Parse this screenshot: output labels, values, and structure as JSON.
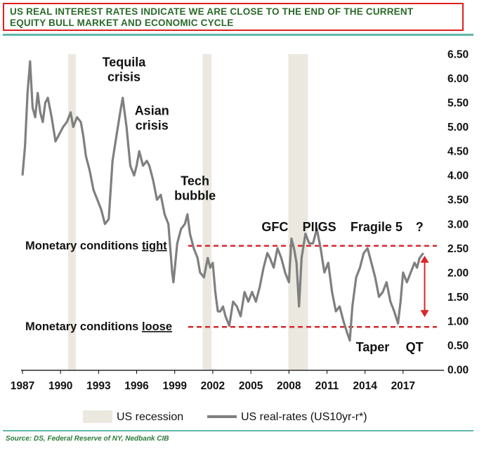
{
  "header": {
    "title_line1": "US REAL INTEREST RATES INDICATE WE ARE CLOSE TO THE END OF THE CURRENT",
    "title_line2": "EQUITY BULL MARKET AND ECONOMIC CYCLE"
  },
  "source": "Source: DS, Federal Reserve of NY, Nedbank CIB",
  "colors": {
    "line": "#7f7f7f",
    "recession": "#ebe8e0",
    "threshold": "#d9262b",
    "title_border": "#e02020",
    "title_text": "#2a6a2a",
    "accent_rule": "#5fb8a8"
  },
  "chart_data": {
    "type": "line",
    "xlim": [
      1987,
      2020
    ],
    "ylim": [
      0,
      6.5
    ],
    "x_ticks": [
      "1987",
      "1990",
      "1993",
      "1996",
      "1999",
      "2002",
      "2005",
      "2008",
      "2011",
      "2014",
      "2017"
    ],
    "x_tick_values": [
      1987,
      1990,
      1993,
      1996,
      1999,
      2002,
      2005,
      2008,
      2011,
      2014,
      2017
    ],
    "y_ticks": [
      "0.00",
      "0.50",
      "1.00",
      "1.50",
      "2.00",
      "2.50",
      "3.00",
      "3.50",
      "4.00",
      "4.50",
      "5.00",
      "5.50",
      "6.00",
      "6.50"
    ],
    "y_axis_position": "right",
    "legend": {
      "position": "bottom",
      "items": [
        {
          "label": "US recession",
          "kind": "band"
        },
        {
          "label": "US real-rates (US10yr-r*)",
          "kind": "line"
        }
      ]
    },
    "recessions": [
      [
        1990.6,
        1991.2
      ],
      [
        2001.2,
        2001.9
      ],
      [
        2007.95,
        2009.5
      ]
    ],
    "thresholds": [
      {
        "value": 2.55,
        "label_prefix": "Monetary conditions ",
        "label_word": "tight"
      },
      {
        "value": 0.88,
        "label_prefix": "Monetary conditions ",
        "label_word": "loose"
      }
    ],
    "range_arrow": {
      "x": 2018.7,
      "from": 0.88,
      "to": 2.55
    },
    "annotations": [
      {
        "lines": [
          "Tequila",
          "crisis"
        ],
        "x": 1995,
        "y": 6.25
      },
      {
        "lines": [
          "Asian",
          "crisis"
        ],
        "x": 1997.2,
        "y": 5.25
      },
      {
        "lines": [
          "Tech",
          "bubble"
        ],
        "x": 2000.6,
        "y": 3.8
      },
      {
        "lines": [
          "GFC"
        ],
        "x": 2006.9,
        "y": 2.85
      },
      {
        "lines": [
          "PIIGS"
        ],
        "x": 2010.4,
        "y": 2.85
      },
      {
        "lines": [
          "Fragile 5"
        ],
        "x": 2014.9,
        "y": 2.85
      },
      {
        "lines": [
          "?"
        ],
        "x": 2018.3,
        "y": 2.85
      },
      {
        "lines": [
          "Taper"
        ],
        "x": 2014.6,
        "y": 0.38
      },
      {
        "lines": [
          "QT"
        ],
        "x": 2017.9,
        "y": 0.38
      }
    ],
    "series": [
      {
        "name": "US real-rates (US10yr-r*)",
        "x": [
          1987.0,
          1987.2,
          1987.4,
          1987.6,
          1987.8,
          1988.0,
          1988.2,
          1988.4,
          1988.6,
          1988.8,
          1989.0,
          1989.3,
          1989.6,
          1990.0,
          1990.2,
          1990.5,
          1990.8,
          1991.0,
          1991.3,
          1991.6,
          1991.8,
          1992.0,
          1992.3,
          1992.6,
          1992.9,
          1993.2,
          1993.5,
          1993.8,
          1994.1,
          1994.4,
          1994.7,
          1994.9,
          1995.2,
          1995.5,
          1995.8,
          1996.0,
          1996.2,
          1996.5,
          1996.8,
          1997.0,
          1997.3,
          1997.6,
          1997.9,
          1998.2,
          1998.5,
          1998.8,
          1998.9,
          1999.2,
          1999.5,
          1999.8,
          2000.0,
          2000.2,
          2000.5,
          2000.8,
          2001.0,
          2001.3,
          2001.6,
          2001.8,
          2002.0,
          2002.2,
          2002.4,
          2002.6,
          2002.8,
          2003.0,
          2003.3,
          2003.6,
          2003.9,
          2004.2,
          2004.5,
          2004.8,
          2005.1,
          2005.4,
          2005.7,
          2006.0,
          2006.3,
          2006.5,
          2006.8,
          2007.1,
          2007.4,
          2007.7,
          2008.0,
          2008.2,
          2008.4,
          2008.6,
          2008.8,
          2009.0,
          2009.3,
          2009.6,
          2009.9,
          2010.2,
          2010.5,
          2010.8,
          2011.1,
          2011.4,
          2011.7,
          2012.0,
          2012.3,
          2012.6,
          2012.8,
          2013.0,
          2013.3,
          2013.6,
          2013.9,
          2014.2,
          2014.5,
          2014.8,
          2015.1,
          2015.4,
          2015.7,
          2016.0,
          2016.3,
          2016.6,
          2016.8,
          2017.0,
          2017.3,
          2017.6,
          2017.9,
          2018.1,
          2018.3,
          2018.6
        ],
        "y": [
          4.0,
          4.6,
          5.7,
          6.35,
          5.4,
          5.2,
          5.7,
          5.3,
          5.1,
          5.5,
          5.6,
          5.2,
          4.7,
          4.9,
          5.0,
          5.1,
          5.3,
          5.0,
          5.2,
          5.1,
          4.8,
          4.4,
          4.1,
          3.7,
          3.5,
          3.3,
          3.0,
          3.1,
          4.3,
          4.8,
          5.3,
          5.6,
          5.0,
          4.2,
          4.0,
          4.2,
          4.5,
          4.2,
          4.3,
          4.2,
          3.9,
          3.5,
          3.6,
          3.2,
          3.0,
          2.0,
          1.8,
          2.6,
          2.9,
          3.0,
          3.2,
          2.8,
          2.5,
          2.3,
          2.0,
          1.9,
          2.3,
          2.1,
          2.2,
          1.6,
          1.2,
          1.2,
          1.3,
          1.1,
          0.9,
          1.4,
          1.3,
          1.1,
          1.6,
          1.4,
          1.6,
          1.4,
          1.7,
          2.1,
          2.4,
          2.3,
          2.1,
          2.5,
          2.3,
          2.0,
          1.8,
          2.7,
          2.5,
          2.2,
          1.3,
          2.3,
          2.8,
          2.6,
          2.6,
          2.9,
          2.5,
          2.0,
          2.2,
          1.6,
          1.2,
          1.3,
          1.0,
          0.75,
          0.6,
          1.3,
          1.9,
          2.1,
          2.4,
          2.5,
          2.2,
          1.9,
          1.5,
          1.6,
          1.8,
          1.4,
          1.2,
          0.95,
          1.4,
          2.0,
          1.8,
          2.0,
          2.2,
          2.1,
          2.3,
          2.4
        ]
      }
    ]
  }
}
